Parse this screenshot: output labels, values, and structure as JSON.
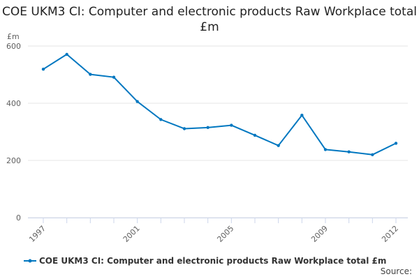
{
  "chart_data": {
    "type": "line",
    "title": "COE UKM3 CI: Computer and electronic products Raw Workplace total £m",
    "ylabel": "£m",
    "xlabel": "",
    "x": [
      1997,
      1998,
      1999,
      2000,
      2001,
      2002,
      2003,
      2004,
      2005,
      2006,
      2007,
      2008,
      2009,
      2010,
      2011,
      2012
    ],
    "xticks": [
      "1997",
      "2001",
      "2005",
      "2009",
      "2012"
    ],
    "yticks": [
      "0",
      "200",
      "400",
      "600"
    ],
    "ylim": [
      0,
      600
    ],
    "grid": true,
    "legend": "bottom",
    "series": [
      {
        "name": "COE UKM3 CI: Computer and electronic products Raw Workplace total £m",
        "color": "#0077c0",
        "values": [
          519,
          571,
          501,
          491,
          406,
          343,
          311,
          315,
          323,
          288,
          252,
          358,
          238,
          230,
          220,
          260
        ]
      }
    ]
  },
  "source_label": "Source:"
}
